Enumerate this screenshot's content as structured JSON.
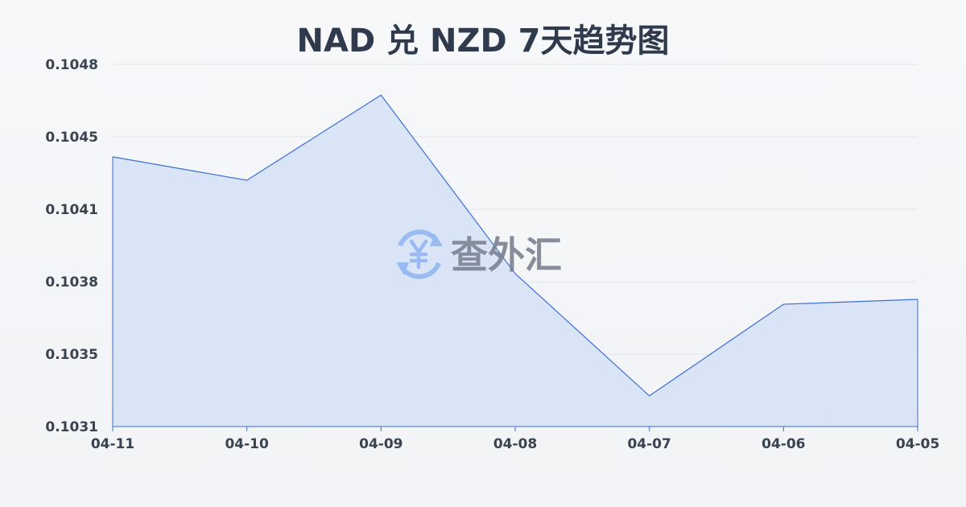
{
  "title": "NAD 兑 NZD 7天趋势图",
  "watermark": {
    "text": "查外汇",
    "icon": "yen-exchange-icon"
  },
  "colors": {
    "line": "#3b6fd6",
    "fill": "#d7e2f6",
    "grid": "#e2e5ea",
    "watermark_icon": "#8fb4f0"
  },
  "chart_data": {
    "type": "area",
    "title": "NAD 兑 NZD 7天趋势图",
    "categories": [
      "04-11",
      "04-10",
      "04-09",
      "04-08",
      "04-07",
      "04-06",
      "04-05"
    ],
    "values": [
      0.104366,
      0.104256,
      0.104656,
      0.103818,
      0.103244,
      0.103674,
      0.103697
    ],
    "ylim": [
      0.1031,
      0.1048
    ],
    "yticks": [
      "0.1048",
      "0.1045",
      "0.1041",
      "0.1038",
      "0.1035",
      "0.1031"
    ],
    "grid": true,
    "legend": "none"
  }
}
